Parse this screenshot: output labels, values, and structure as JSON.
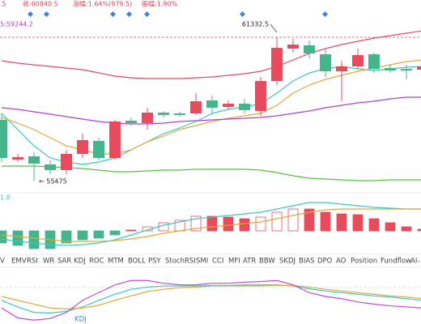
{
  "header": {
    "items": [
      ".5",
      "收:60840.5",
      "涨幅:1.64%(979.5)",
      "振幅:1.90%"
    ],
    "ma_label": "5:59244.2"
  },
  "tabs": {
    "items": [
      "V",
      "EMV",
      "RSI",
      "WR",
      "SAR",
      "KDJ",
      "ROC",
      "MTM",
      "BOLL",
      "PSY",
      "StochRSI",
      "SMI",
      "CCI",
      "MFI",
      "ATR",
      "BBW",
      "SKDJ",
      "BIAS",
      "DPO",
      "AO",
      "Position",
      "Fundflow",
      "AI-"
    ],
    "active_index": 5,
    "disabled_index": 10
  },
  "chart_data": [
    {
      "type": "candlestick",
      "ylim": [
        55095,
        62850
      ],
      "up_color": "#e84b5c",
      "down_color": "#45b58c",
      "open": [
        57966,
        56349,
        56481,
        56151,
        55920,
        56580,
        57108,
        56415,
        57933,
        57834,
        58263,
        58230,
        58230,
        58758,
        58494,
        58626,
        58329,
        59550,
        60870,
        61002,
        60639,
        59946,
        60144,
        60639,
        60078,
        60045,
        60012
      ],
      "high": [
        58230,
        56580,
        56646,
        56316,
        56745,
        57405,
        57240,
        57966,
        58065,
        58461,
        58329,
        58296,
        59055,
        58956,
        58758,
        58824,
        59715,
        61332.5,
        61266,
        61200,
        60870,
        60375,
        60870,
        60705,
        60210,
        60210,
        60276
      ],
      "low": [
        56250,
        56250,
        55475,
        55755,
        55755,
        56415,
        56316,
        56349,
        57735,
        57570,
        58065,
        58098,
        58164,
        58230,
        58395,
        58230,
        58131,
        59385,
        60705,
        60474,
        59715,
        58725,
        60045,
        59880,
        59880,
        59616,
        59880
      ],
      "close": [
        56415,
        56448,
        56184,
        55920,
        56580,
        57141,
        56415,
        57900,
        57834,
        58263,
        58164,
        58164,
        58725,
        58461,
        58626,
        58362,
        59550,
        60903,
        61035,
        60672,
        59946,
        60144,
        60606,
        60045,
        59979,
        59979,
        60144
      ],
      "series": [
        {
          "color": "#e8485f",
          "values": [
            60375,
            60276,
            60210,
            60144,
            60078,
            60012,
            59880,
            59748,
            59682,
            59649,
            59649,
            59649,
            59682,
            59715,
            59781,
            59847,
            59946,
            60144,
            60408,
            60672,
            60870,
            61035,
            61167,
            61299,
            61398,
            61497,
            61596
          ]
        },
        {
          "color": "#3cc8c0",
          "values": [
            58230,
            57570,
            56910,
            56415,
            56250,
            56151,
            56250,
            56415,
            56745,
            57075,
            57405,
            57636,
            57900,
            58230,
            58395,
            58494,
            58626,
            59055,
            59550,
            59880,
            60045,
            60144,
            60045,
            59979,
            60045,
            60111,
            60144
          ]
        },
        {
          "color": "#e0a93a",
          "values": [
            58065,
            57834,
            57570,
            57240,
            56910,
            56745,
            56580,
            56580,
            56745,
            57075,
            57306,
            57570,
            57735,
            57900,
            58032,
            58131,
            58230,
            58560,
            59055,
            59385,
            59616,
            59781,
            59946,
            60078,
            60210,
            60342,
            60408
          ]
        },
        {
          "color": "#b040d0",
          "values": [
            58461,
            58395,
            58296,
            58197,
            58098,
            57999,
            57900,
            57834,
            57801,
            57801,
            57834,
            57900,
            57933,
            57966,
            57999,
            58032,
            58065,
            58131,
            58230,
            58329,
            58461,
            58560,
            58659,
            58725,
            58824,
            58890,
            58890
          ]
        },
        {
          "color": "#56c23c",
          "values": [
            56085,
            56085,
            56085,
            56052,
            56019,
            55986,
            55920,
            55854,
            55854,
            55887,
            55920,
            55920,
            55953,
            55953,
            55953,
            55953,
            55920,
            55821,
            55689,
            55590,
            55557,
            55524,
            55491,
            55491,
            55524,
            55524,
            55524
          ]
        }
      ]
    },
    {
      "type": "macd",
      "label": "1.8",
      "ylim": [
        -270,
        450
      ],
      "up_color": "#e84b5c",
      "down_color": "#45b58c",
      "histogram": [
        -150,
        -180,
        -220,
        -220,
        -150,
        -110,
        -90,
        -50,
        10,
        50,
        100,
        130,
        180,
        180,
        170,
        150,
        170,
        230,
        270,
        270,
        230,
        210,
        200,
        150,
        100,
        50,
        20
      ],
      "series": [
        {
          "color": "#3cc8c0",
          "values": [
            -100,
            -130,
            -150,
            -170,
            -180,
            -170,
            -150,
            -110,
            -50,
            10,
            70,
            110,
            150,
            170,
            190,
            210,
            230,
            270,
            310,
            350,
            350,
            330,
            310,
            290,
            280,
            270,
            270
          ]
        },
        {
          "color": "#e0a93a",
          "values": [
            -50,
            -70,
            -90,
            -110,
            -130,
            -130,
            -130,
            -120,
            -100,
            -70,
            -30,
            0,
            30,
            50,
            70,
            90,
            110,
            150,
            190,
            230,
            260,
            270,
            270,
            270,
            270,
            270,
            270
          ]
        }
      ]
    },
    {
      "type": "line",
      "label": "KDJ",
      "ylim": [
        0,
        100
      ],
      "series": [
        {
          "color": "#3cc8c0",
          "values": [
            43,
            31,
            21,
            20,
            23,
            31,
            43,
            54,
            63,
            67,
            69,
            69,
            69,
            70,
            70,
            71,
            71,
            71,
            69,
            64,
            60,
            57,
            54,
            51,
            49,
            46,
            43
          ]
        },
        {
          "color": "#e0a93a",
          "values": [
            50,
            43,
            36,
            29,
            27,
            29,
            34,
            43,
            51,
            59,
            63,
            66,
            67,
            69,
            69,
            69,
            69,
            70,
            70,
            67,
            63,
            60,
            57,
            54,
            51,
            49,
            46
          ]
        },
        {
          "color": "#c04ad8",
          "values": [
            29,
            11,
            7,
            10,
            21,
            43,
            57,
            71,
            79,
            79,
            74,
            71,
            71,
            74,
            74,
            76,
            77,
            79,
            71,
            57,
            50,
            46,
            40,
            36,
            33,
            31,
            29
          ]
        }
      ]
    }
  ]
}
